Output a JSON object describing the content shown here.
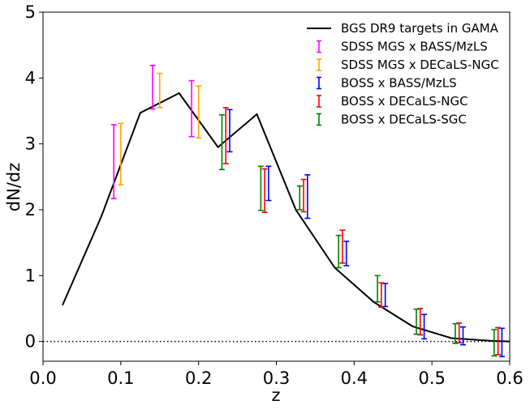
{
  "chart_data": {
    "type": "line",
    "xlabel": "z",
    "ylabel": "dN/dz",
    "xlim": [
      0.0,
      0.6
    ],
    "ylim": [
      -0.3,
      5.0
    ],
    "x_ticks": [
      "0.0",
      "0.1",
      "0.2",
      "0.3",
      "0.4",
      "0.5",
      "0.6"
    ],
    "y_ticks": [
      "0",
      "1",
      "2",
      "3",
      "4",
      "5"
    ],
    "reference_line": {
      "y": 0,
      "style": "dotted"
    },
    "legend_position": "top-right",
    "line_series": {
      "name": "BGS DR9 targets in GAMA",
      "color": "#000000",
      "x": [
        0.025,
        0.075,
        0.125,
        0.175,
        0.225,
        0.275,
        0.325,
        0.375,
        0.425,
        0.475,
        0.525,
        0.575,
        0.6
      ],
      "y": [
        0.55,
        1.9,
        3.47,
        3.77,
        2.95,
        3.45,
        2.0,
        1.12,
        0.6,
        0.23,
        0.05,
        0.01,
        0.0
      ]
    },
    "errorbar_series": [
      {
        "name": "SDSS MGS x BASS/MzLS",
        "color": "#ff00ff",
        "x": [
          0.091,
          0.141,
          0.191
        ],
        "y_low": [
          2.17,
          3.53,
          3.11
        ],
        "y_high": [
          3.29,
          4.19,
          3.96
        ]
      },
      {
        "name": "SDSS MGS x DECaLS-NGC",
        "color": "#ffa500",
        "x": [
          0.1,
          0.15,
          0.2
        ],
        "y_low": [
          2.38,
          3.55,
          3.09
        ],
        "y_high": [
          3.31,
          4.07,
          3.88
        ]
      },
      {
        "name": "BOSS x BASS/MzLS",
        "color": "#0000ff",
        "x": [
          0.24,
          0.29,
          0.34,
          0.39,
          0.44,
          0.49,
          0.54,
          0.59
        ],
        "y_low": [
          2.88,
          2.14,
          1.87,
          1.15,
          0.53,
          0.04,
          -0.05,
          -0.23
        ],
        "y_high": [
          3.52,
          2.66,
          2.53,
          1.52,
          0.88,
          0.41,
          0.22,
          0.2
        ]
      },
      {
        "name": "BOSS x DECaLS-NGC",
        "color": "#ff0000",
        "x": [
          0.235,
          0.285,
          0.335,
          0.385,
          0.435,
          0.485,
          0.535,
          0.585
        ],
        "y_low": [
          2.7,
          1.96,
          1.97,
          1.19,
          0.52,
          0.1,
          -0.02,
          -0.2
        ],
        "y_high": [
          3.55,
          2.62,
          2.46,
          1.69,
          0.89,
          0.5,
          0.28,
          0.21
        ]
      },
      {
        "name": "BOSS x DECaLS-SGC",
        "color": "#008000",
        "x": [
          0.23,
          0.28,
          0.33,
          0.38,
          0.43,
          0.48,
          0.53,
          0.58
        ],
        "y_low": [
          2.61,
          1.99,
          2.0,
          1.12,
          0.6,
          0.11,
          -0.03,
          -0.22
        ],
        "y_high": [
          3.44,
          2.66,
          2.36,
          1.61,
          1.0,
          0.49,
          0.27,
          0.18
        ]
      }
    ]
  }
}
